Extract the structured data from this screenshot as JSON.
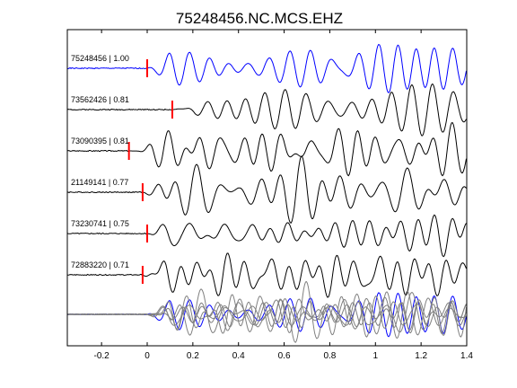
{
  "chart_data": {
    "type": "line",
    "title": "75248456.NC.MCS.EHZ",
    "xlabel": "",
    "ylabel": "",
    "xlim": [
      -0.35,
      1.4
    ],
    "x_ticks": [
      -0.2,
      0,
      0.2,
      0.4,
      0.6,
      0.8,
      1,
      1.2,
      1.4
    ],
    "x_tick_labels": [
      "-0.2",
      "0",
      "0.2",
      "0.4",
      "0.6",
      "0.8",
      "1",
      "1.2",
      "1.4"
    ],
    "grid": false,
    "colors": {
      "reference": "#0000ff",
      "trace": "#000000",
      "pick": "#ff0000",
      "stack": "#808080"
    },
    "traces": [
      {
        "label": "75248456 | 1.00",
        "pick_time": 0.0,
        "color": "#0000ff",
        "seed": 1
      },
      {
        "label": "73562426 | 0.81",
        "pick_time": 0.11,
        "color": "#000000",
        "seed": 2
      },
      {
        "label": "73090395 | 0.81",
        "pick_time": -0.08,
        "color": "#000000",
        "seed": 3
      },
      {
        "label": "21149141 | 0.77",
        "pick_time": -0.02,
        "color": "#000000",
        "seed": 4
      },
      {
        "label": "73230741 | 0.75",
        "pick_time": 0.0,
        "color": "#000000",
        "seed": 5
      },
      {
        "label": "72883220 | 0.71",
        "pick_time": -0.02,
        "color": "#000000",
        "seed": 6
      }
    ],
    "stack": {
      "seeds": [
        1,
        2,
        3,
        4,
        5,
        6
      ],
      "reference_seed": 1
    }
  }
}
